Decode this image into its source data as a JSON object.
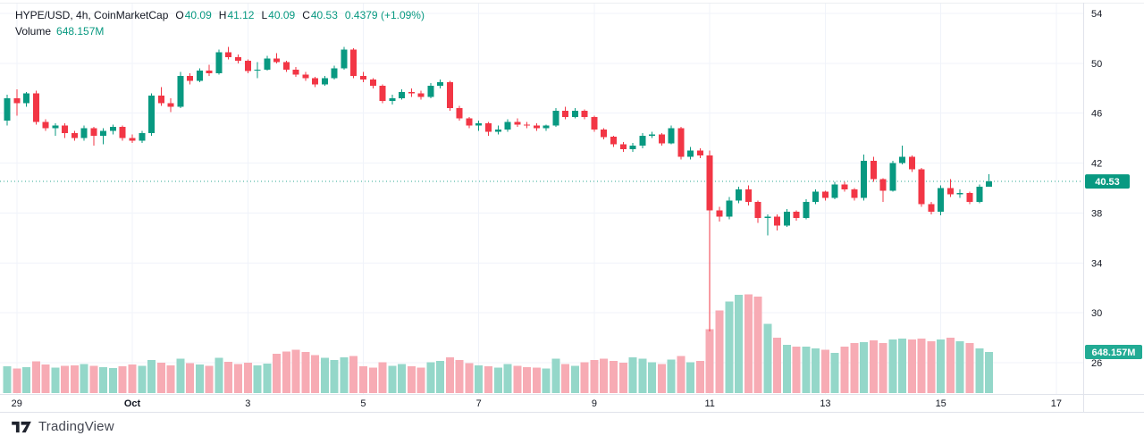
{
  "header": {
    "title": "HYPE/USD, 4h, CoinMarketCap",
    "ohlc": {
      "o_label": "O",
      "o_value": "40.09",
      "h_label": "H",
      "h_value": "41.12",
      "l_label": "L",
      "l_value": "40.09",
      "c_label": "C",
      "c_value": "40.53"
    },
    "change": "0.4379 (+1.09%)",
    "volume_label": "Volume",
    "volume_value": "648.157M"
  },
  "price_scale": {
    "ticks": [
      54,
      50,
      46,
      42,
      38,
      34,
      30,
      26
    ],
    "last_price_badge": "40.53",
    "volume_badge": "648.157M"
  },
  "time_scale": {
    "ticks": [
      {
        "label": "29",
        "index": 1,
        "bold": false
      },
      {
        "label": "Oct",
        "index": 13,
        "bold": true
      },
      {
        "label": "3",
        "index": 25,
        "bold": false
      },
      {
        "label": "5",
        "index": 37,
        "bold": false
      },
      {
        "label": "7",
        "index": 49,
        "bold": false
      },
      {
        "label": "9",
        "index": 61,
        "bold": false
      },
      {
        "label": "11",
        "index": 73,
        "bold": false
      },
      {
        "label": "13",
        "index": 85,
        "bold": false
      },
      {
        "label": "15",
        "index": 97,
        "bold": false
      },
      {
        "label": "17",
        "index": 109,
        "bold": false
      }
    ]
  },
  "attribution": {
    "brand": "TradingView"
  },
  "colors": {
    "up": "#089981",
    "down": "#f23645",
    "vol_up": "#94d7c9",
    "vol_down": "#f7abb4",
    "grid": "#f0f3fa",
    "border": "#e0e3eb",
    "text": "#131722",
    "badge_price": "#089981",
    "badge_volume": "#22ab94",
    "brand_mark": "#1e222d",
    "brand_text": "#434651"
  },
  "chart_data": {
    "type": "candlestick+volume",
    "symbol": "HYPE/USD",
    "interval": "4h",
    "source": "CoinMarketCap",
    "title": "HYPE/USD, 4h, CoinMarketCap",
    "x_axis": {
      "start": "Sep 28 20:00",
      "bar_interval_hours": 4,
      "tick_labels": [
        "29",
        "Oct",
        "3",
        "5",
        "7",
        "9",
        "11",
        "13",
        "15",
        "17"
      ]
    },
    "y_axis": {
      "price_range": [
        25.2,
        54.3
      ],
      "gridline_step": 4,
      "price_gridlines": [
        26,
        30,
        34,
        38,
        42,
        46,
        50,
        54
      ]
    },
    "volume_axis": {
      "unit": "millions",
      "last_value_m": 648.157,
      "max_value_m": 1560
    },
    "last": {
      "open": 40.09,
      "high": 41.12,
      "low": 40.09,
      "close": 40.53,
      "change": 0.4379,
      "change_pct": 1.09,
      "volume_label": "648.157M"
    },
    "legend_position": "top-left",
    "grid": true,
    "candles_ohlc": [
      [
        45.4,
        47.5,
        45.0,
        47.2
      ],
      [
        47.2,
        47.9,
        45.8,
        46.8
      ],
      [
        46.8,
        47.7,
        46.5,
        47.6
      ],
      [
        47.6,
        47.8,
        45.1,
        45.3
      ],
      [
        45.3,
        45.5,
        44.6,
        44.8
      ],
      [
        44.8,
        45.2,
        44.2,
        45.0
      ],
      [
        45.0,
        45.2,
        44.0,
        44.4
      ],
      [
        44.4,
        44.6,
        43.8,
        44.0
      ],
      [
        44.0,
        45.0,
        43.8,
        44.8
      ],
      [
        44.8,
        44.9,
        43.4,
        44.2
      ],
      [
        44.2,
        44.8,
        43.5,
        44.6
      ],
      [
        44.6,
        45.1,
        44.3,
        44.9
      ],
      [
        44.9,
        45.0,
        43.8,
        44.0
      ],
      [
        44.0,
        44.3,
        43.6,
        43.8
      ],
      [
        43.8,
        44.6,
        43.6,
        44.4
      ],
      [
        44.4,
        47.6,
        44.2,
        47.4
      ],
      [
        47.4,
        48.1,
        46.6,
        46.8
      ],
      [
        46.8,
        47.2,
        46.1,
        46.5
      ],
      [
        46.5,
        49.3,
        46.4,
        49.0
      ],
      [
        49.0,
        49.2,
        48.3,
        48.6
      ],
      [
        48.6,
        49.6,
        48.5,
        49.4
      ],
      [
        49.4,
        49.9,
        49.0,
        49.2
      ],
      [
        49.2,
        51.1,
        49.1,
        50.9
      ],
      [
        50.9,
        51.3,
        50.3,
        50.5
      ],
      [
        50.5,
        50.7,
        50.0,
        50.2
      ],
      [
        50.2,
        50.3,
        49.2,
        49.4
      ],
      [
        49.4,
        50.1,
        48.8,
        49.5
      ],
      [
        49.5,
        50.6,
        49.4,
        50.4
      ],
      [
        50.4,
        50.8,
        50.0,
        50.1
      ],
      [
        50.1,
        50.2,
        49.3,
        49.5
      ],
      [
        49.5,
        49.7,
        48.9,
        49.1
      ],
      [
        49.1,
        49.3,
        48.6,
        48.8
      ],
      [
        48.8,
        48.9,
        48.1,
        48.3
      ],
      [
        48.3,
        49.0,
        48.2,
        48.8
      ],
      [
        48.8,
        49.8,
        48.7,
        49.6
      ],
      [
        49.6,
        51.3,
        49.5,
        51.1
      ],
      [
        51.1,
        51.2,
        48.8,
        49.0
      ],
      [
        49.0,
        49.3,
        48.5,
        48.7
      ],
      [
        48.7,
        48.8,
        48.0,
        48.2
      ],
      [
        48.2,
        48.3,
        46.8,
        47.0
      ],
      [
        47.0,
        47.5,
        46.7,
        47.2
      ],
      [
        47.2,
        47.9,
        47.1,
        47.7
      ],
      [
        47.7,
        48.0,
        47.3,
        47.6
      ],
      [
        47.6,
        47.8,
        47.1,
        47.3
      ],
      [
        47.3,
        48.4,
        47.2,
        48.2
      ],
      [
        48.2,
        48.7,
        48.0,
        48.5
      ],
      [
        48.5,
        48.6,
        46.2,
        46.4
      ],
      [
        46.4,
        46.6,
        45.4,
        45.6
      ],
      [
        45.6,
        45.7,
        44.8,
        45.0
      ],
      [
        45.0,
        45.4,
        44.6,
        45.2
      ],
      [
        45.2,
        45.3,
        44.2,
        44.5
      ],
      [
        44.5,
        45.0,
        44.3,
        44.7
      ],
      [
        44.7,
        45.5,
        44.5,
        45.3
      ],
      [
        45.3,
        45.6,
        44.9,
        45.1
      ],
      [
        45.1,
        45.3,
        44.8,
        45.0
      ],
      [
        45.0,
        45.2,
        44.6,
        44.8
      ],
      [
        44.8,
        45.1,
        44.6,
        45.0
      ],
      [
        45.0,
        46.4,
        44.9,
        46.2
      ],
      [
        46.2,
        46.5,
        45.5,
        45.7
      ],
      [
        45.7,
        46.4,
        45.6,
        46.2
      ],
      [
        46.2,
        46.3,
        45.5,
        45.7
      ],
      [
        45.7,
        45.8,
        44.5,
        44.7
      ],
      [
        44.7,
        44.8,
        43.9,
        44.1
      ],
      [
        44.1,
        44.2,
        43.3,
        43.5
      ],
      [
        43.5,
        43.7,
        42.9,
        43.1
      ],
      [
        43.1,
        43.6,
        42.9,
        43.4
      ],
      [
        43.4,
        44.4,
        43.2,
        44.2
      ],
      [
        44.2,
        44.5,
        44.0,
        44.3
      ],
      [
        44.3,
        44.4,
        43.4,
        43.6
      ],
      [
        43.6,
        45.0,
        43.5,
        44.8
      ],
      [
        44.8,
        44.9,
        42.3,
        42.5
      ],
      [
        42.5,
        43.3,
        42.3,
        43.0
      ],
      [
        43.0,
        43.2,
        42.4,
        42.6
      ],
      [
        42.6,
        43.0,
        28.5,
        38.2
      ],
      [
        38.2,
        38.5,
        37.3,
        37.7
      ],
      [
        37.7,
        39.3,
        37.5,
        39.0
      ],
      [
        39.0,
        40.1,
        38.8,
        39.9
      ],
      [
        39.9,
        40.2,
        38.6,
        38.9
      ],
      [
        38.9,
        39.0,
        37.2,
        37.6
      ],
      [
        37.6,
        37.9,
        36.2,
        37.7
      ],
      [
        37.7,
        37.9,
        36.6,
        37.0
      ],
      [
        37.0,
        38.3,
        36.9,
        38.1
      ],
      [
        38.1,
        38.2,
        37.4,
        37.6
      ],
      [
        37.6,
        39.1,
        37.5,
        38.9
      ],
      [
        38.9,
        39.9,
        38.7,
        39.7
      ],
      [
        39.7,
        39.8,
        39.0,
        39.2
      ],
      [
        39.2,
        40.5,
        39.1,
        40.3
      ],
      [
        40.3,
        40.5,
        39.7,
        39.9
      ],
      [
        39.9,
        40.0,
        39.0,
        39.2
      ],
      [
        39.2,
        42.7,
        39.0,
        42.2
      ],
      [
        42.2,
        42.5,
        40.5,
        40.7
      ],
      [
        40.7,
        40.8,
        38.9,
        39.8
      ],
      [
        39.8,
        42.2,
        39.7,
        42.0
      ],
      [
        42.0,
        43.4,
        41.9,
        42.5
      ],
      [
        42.5,
        42.6,
        41.3,
        41.5
      ],
      [
        41.5,
        41.6,
        38.5,
        38.7
      ],
      [
        38.7,
        38.9,
        37.9,
        38.1
      ],
      [
        38.1,
        40.2,
        37.8,
        40.0
      ],
      [
        40.0,
        40.7,
        39.3,
        39.5
      ],
      [
        39.5,
        39.9,
        39.2,
        39.6
      ],
      [
        39.6,
        39.7,
        38.7,
        38.9
      ],
      [
        38.9,
        40.3,
        38.8,
        40.09
      ],
      [
        40.09,
        41.12,
        40.09,
        40.53
      ]
    ],
    "volumes_m": [
      420,
      390,
      410,
      500,
      450,
      400,
      430,
      440,
      460,
      430,
      410,
      395,
      425,
      450,
      430,
      520,
      480,
      440,
      545,
      470,
      450,
      430,
      560,
      490,
      455,
      480,
      440,
      465,
      620,
      655,
      680,
      650,
      600,
      560,
      520,
      565,
      585,
      420,
      400,
      485,
      430,
      455,
      420,
      400,
      485,
      505,
      565,
      520,
      470,
      440,
      420,
      400,
      455,
      430,
      410,
      400,
      390,
      545,
      460,
      430,
      485,
      520,
      545,
      505,
      480,
      565,
      545,
      485,
      460,
      525,
      585,
      485,
      505,
      1010,
      1300,
      1445,
      1550,
      1560,
      1520,
      1090,
      875,
      760,
      735,
      735,
      705,
      680,
      635,
      735,
      790,
      800,
      830,
      790,
      845,
      860,
      845,
      860,
      820,
      845,
      875,
      820,
      790,
      705,
      648.157
    ]
  }
}
